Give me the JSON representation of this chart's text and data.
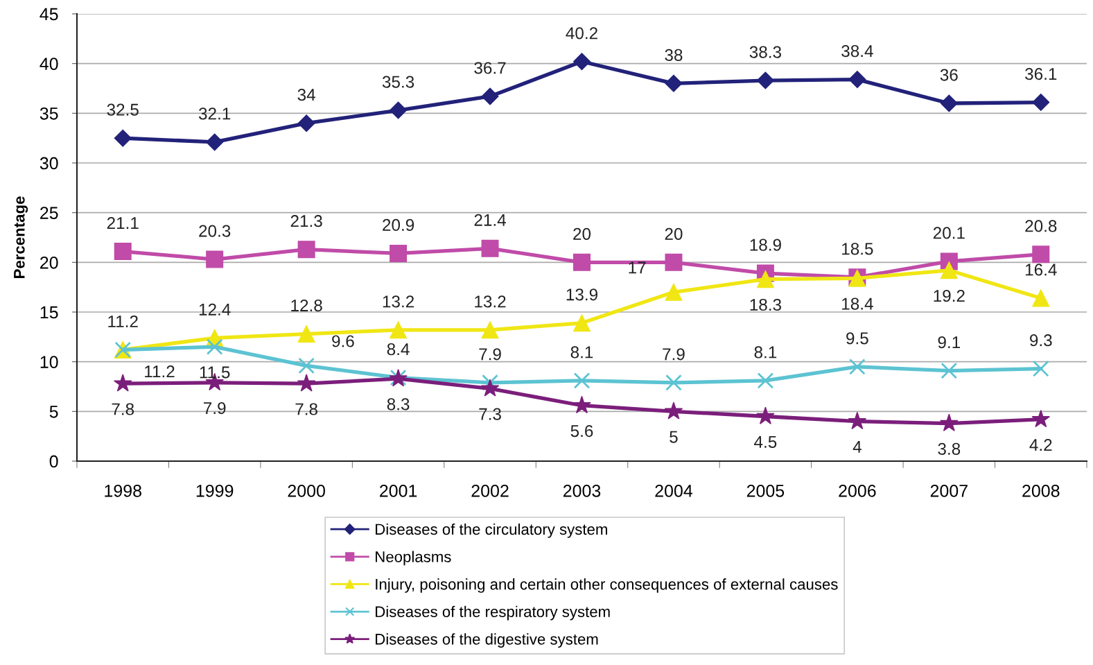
{
  "chart_data": {
    "type": "line",
    "ylabel": "Percentage",
    "categories": [
      "1998",
      "1999",
      "2000",
      "2001",
      "2002",
      "2003",
      "2004",
      "2005",
      "2006",
      "2007",
      "2008"
    ],
    "ylim": [
      0,
      45
    ],
    "yticks": [
      0,
      5,
      10,
      15,
      20,
      25,
      30,
      35,
      40,
      45
    ],
    "grid": "y",
    "legend": "bottom",
    "data_labels": true,
    "line_style": "solid",
    "series": [
      {
        "name": "Diseases of the circulatory system",
        "color": "#22227a",
        "marker": "diamond",
        "values": [
          32.5,
          32.1,
          34,
          35.3,
          36.7,
          40.2,
          38,
          38.3,
          38.4,
          36,
          36.1
        ]
      },
      {
        "name": "Neoplasms",
        "color": "#c04ba8",
        "marker": "square",
        "values": [
          21.1,
          20.3,
          21.3,
          20.9,
          21.4,
          20,
          20,
          18.9,
          18.5,
          20.1,
          20.8
        ]
      },
      {
        "name": "Injury, poisoning and certain other consequences of external causes",
        "color": "#f0e614",
        "marker": "triangle",
        "values": [
          11.2,
          12.4,
          12.8,
          13.2,
          13.2,
          13.9,
          17,
          18.3,
          18.4,
          19.2,
          16.4
        ]
      },
      {
        "name": "Diseases of the respiratory system",
        "color": "#5cc3d2",
        "marker": "cross",
        "values": [
          11.2,
          11.5,
          9.6,
          8.4,
          7.9,
          8.1,
          7.9,
          8.1,
          9.5,
          9.1,
          9.3
        ]
      },
      {
        "name": "Diseases of the digestive system",
        "color": "#7b1e7b",
        "marker": "star",
        "values": [
          7.8,
          7.9,
          7.8,
          8.3,
          7.3,
          5.6,
          5,
          4.5,
          4,
          3.8,
          4.2
        ]
      }
    ]
  }
}
